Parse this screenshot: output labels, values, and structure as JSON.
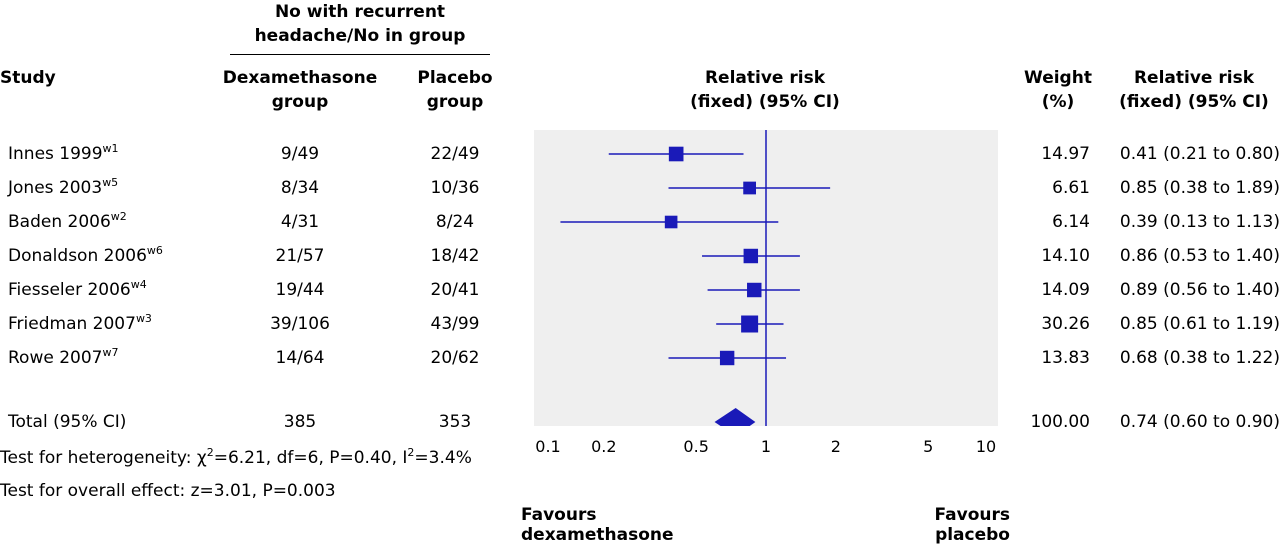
{
  "header": {
    "group_header": [
      "No with recurrent",
      "headache/No in group"
    ],
    "study": "Study",
    "dex_group": [
      "Dexamethasone",
      "group"
    ],
    "placebo_group": [
      "Placebo",
      "group"
    ],
    "rr_plot": [
      "Relative risk",
      "(fixed) (95% CI)"
    ],
    "weight": [
      "Weight",
      "(%)"
    ],
    "rr_text": [
      "Relative risk",
      "(fixed) (95% CI)"
    ]
  },
  "studies": [
    {
      "name": "Innes 1999",
      "ref": "w1",
      "dex": "9/49",
      "placebo": "22/49",
      "weight": "14.97",
      "rr_text": "0.41 (0.21 to 0.80)"
    },
    {
      "name": "Jones 2003",
      "ref": "w5",
      "dex": "8/34",
      "placebo": "10/36",
      "weight": "6.61",
      "rr_text": "0.85 (0.38 to 1.89)"
    },
    {
      "name": "Baden 2006",
      "ref": "w2",
      "dex": "4/31",
      "placebo": "8/24",
      "weight": "6.14",
      "rr_text": "0.39 (0.13 to 1.13)"
    },
    {
      "name": "Donaldson 2006",
      "ref": "w6",
      "dex": "21/57",
      "placebo": "18/42",
      "weight": "14.10",
      "rr_text": "0.86 (0.53 to 1.40)"
    },
    {
      "name": "Fiesseler 2006",
      "ref": "w4",
      "dex": "19/44",
      "placebo": "20/41",
      "weight": "14.09",
      "rr_text": "0.89 (0.56 to 1.40)"
    },
    {
      "name": "Friedman 2007",
      "ref": "w3",
      "dex": "39/106",
      "placebo": "43/99",
      "weight": "30.26",
      "rr_text": "0.85 (0.61 to 1.19)"
    },
    {
      "name": "Rowe 2007",
      "ref": "w7",
      "dex": "14/64",
      "placebo": "20/62",
      "weight": "13.83",
      "rr_text": "0.68 (0.38 to 1.22)"
    }
  ],
  "total": {
    "label": "Total (95% CI)",
    "dex": "385",
    "placebo": "353",
    "weight": "100.00",
    "rr_text": "0.74 (0.60 to 0.90)"
  },
  "tests": {
    "heterogeneity": {
      "prefix": "Test for heterogeneity: ",
      "chi": "χ",
      "chi_exp": "2",
      "mid": "=6.21, df=6, P=0.40, I",
      "i_exp": "2",
      "suffix": "=3.4%"
    },
    "overall": "Test for overall effect: z=3.01, P=0.003"
  },
  "favours": {
    "left": [
      "Favours",
      "dexamethasone"
    ],
    "right": [
      "Favours",
      "placebo"
    ]
  },
  "colors": {
    "marker": "#1a1ab8",
    "panel": "#efefef",
    "line": "#1a1ab8"
  },
  "chart_data": {
    "type": "scatter",
    "subtype": "forest-plot",
    "x_scale": "log",
    "xlim": [
      0.1,
      10
    ],
    "x_ticks": [
      0.1,
      0.2,
      0.5,
      1,
      2,
      5,
      10
    ],
    "x_tick_labels": [
      "0.1",
      "0.2",
      "0.5",
      "1",
      "2",
      "5",
      "10"
    ],
    "reference_line": 1,
    "points": [
      {
        "rr": 0.41,
        "low": 0.21,
        "high": 0.8,
        "weight": 14.97
      },
      {
        "rr": 0.85,
        "low": 0.38,
        "high": 1.89,
        "weight": 6.61
      },
      {
        "rr": 0.39,
        "low": 0.13,
        "high": 1.13,
        "weight": 6.14
      },
      {
        "rr": 0.86,
        "low": 0.53,
        "high": 1.4,
        "weight": 14.1
      },
      {
        "rr": 0.89,
        "low": 0.56,
        "high": 1.4,
        "weight": 14.09
      },
      {
        "rr": 0.85,
        "low": 0.61,
        "high": 1.19,
        "weight": 30.26
      },
      {
        "rr": 0.68,
        "low": 0.38,
        "high": 1.22,
        "weight": 13.83
      }
    ],
    "pooled": {
      "rr": 0.74,
      "low": 0.6,
      "high": 0.9
    }
  }
}
